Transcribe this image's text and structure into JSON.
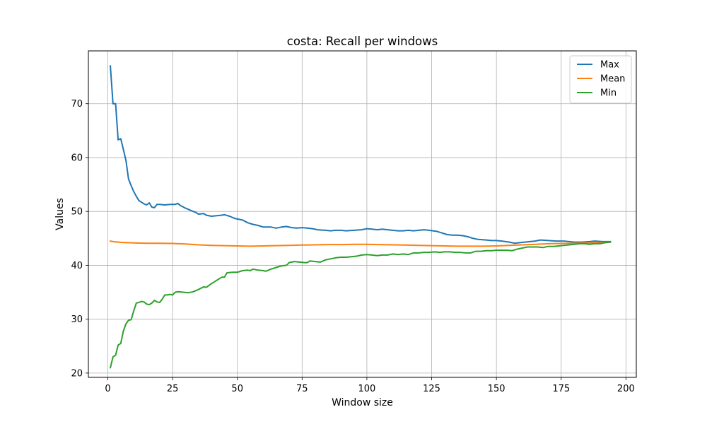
{
  "chart_data": {
    "type": "line",
    "title": "costa: Recall per windows",
    "xlabel": "Window size",
    "ylabel": "Values",
    "xlim": [
      -7.5,
      204
    ],
    "ylim": [
      19.2,
      79.8
    ],
    "xticks": [
      0,
      25,
      50,
      75,
      100,
      125,
      150,
      175,
      200
    ],
    "yticks": [
      20,
      30,
      40,
      50,
      60,
      70
    ],
    "grid": true,
    "legend_position": "top-right",
    "series": [
      {
        "name": "Max",
        "color": "#1f77b4",
        "points": [
          [
            1,
            77
          ],
          [
            2,
            70
          ],
          [
            3,
            70
          ],
          [
            4,
            63.3
          ],
          [
            5,
            63.5
          ],
          [
            6,
            61.5
          ],
          [
            7,
            59.5
          ],
          [
            8,
            56
          ],
          [
            9,
            54.8
          ],
          [
            10,
            53.7
          ],
          [
            11,
            52.8
          ],
          [
            12,
            52
          ],
          [
            13,
            51.7
          ],
          [
            14,
            51.4
          ],
          [
            15,
            51.2
          ],
          [
            16,
            51.6
          ],
          [
            17,
            50.8
          ],
          [
            18,
            50.7
          ],
          [
            19,
            51.3
          ],
          [
            20,
            51.3
          ],
          [
            22,
            51.2
          ],
          [
            24,
            51.3
          ],
          [
            26,
            51.3
          ],
          [
            27,
            51.5
          ],
          [
            28,
            51.1
          ],
          [
            30,
            50.6
          ],
          [
            32,
            50.2
          ],
          [
            34,
            49.8
          ],
          [
            35,
            49.5
          ],
          [
            37,
            49.6
          ],
          [
            38,
            49.3
          ],
          [
            40,
            49.1
          ],
          [
            42,
            49.2
          ],
          [
            44,
            49.3
          ],
          [
            45,
            49.4
          ],
          [
            47,
            49.1
          ],
          [
            49,
            48.7
          ],
          [
            52,
            48.4
          ],
          [
            54,
            47.9
          ],
          [
            56,
            47.6
          ],
          [
            58,
            47.4
          ],
          [
            60,
            47.1
          ],
          [
            63,
            47.1
          ],
          [
            65,
            46.9
          ],
          [
            67,
            47.1
          ],
          [
            69,
            47.2
          ],
          [
            71,
            47
          ],
          [
            73,
            46.9
          ],
          [
            75,
            47
          ],
          [
            77,
            46.9
          ],
          [
            79,
            46.8
          ],
          [
            81,
            46.6
          ],
          [
            84,
            46.5
          ],
          [
            86,
            46.4
          ],
          [
            88,
            46.5
          ],
          [
            90,
            46.5
          ],
          [
            92,
            46.4
          ],
          [
            95,
            46.5
          ],
          [
            98,
            46.6
          ],
          [
            100,
            46.8
          ],
          [
            102,
            46.7
          ],
          [
            104,
            46.6
          ],
          [
            106,
            46.7
          ],
          [
            108,
            46.6
          ],
          [
            110,
            46.5
          ],
          [
            112,
            46.4
          ],
          [
            114,
            46.4
          ],
          [
            116,
            46.5
          ],
          [
            118,
            46.4
          ],
          [
            120,
            46.5
          ],
          [
            122,
            46.6
          ],
          [
            124,
            46.5
          ],
          [
            127,
            46.3
          ],
          [
            129,
            46
          ],
          [
            131,
            45.7
          ],
          [
            133,
            45.6
          ],
          [
            135,
            45.6
          ],
          [
            137,
            45.5
          ],
          [
            139,
            45.3
          ],
          [
            141,
            45
          ],
          [
            143,
            44.8
          ],
          [
            146,
            44.7
          ],
          [
            148,
            44.6
          ],
          [
            150,
            44.6
          ],
          [
            152,
            44.5
          ],
          [
            155,
            44.3
          ],
          [
            157,
            44.1
          ],
          [
            159,
            44.2
          ],
          [
            161,
            44.3
          ],
          [
            163,
            44.4
          ],
          [
            165,
            44.5
          ],
          [
            167,
            44.7
          ],
          [
            170,
            44.6
          ],
          [
            173,
            44.5
          ],
          [
            176,
            44.5
          ],
          [
            178,
            44.4
          ],
          [
            180,
            44.3
          ],
          [
            183,
            44.3
          ],
          [
            186,
            44.4
          ],
          [
            188,
            44.5
          ],
          [
            191,
            44.4
          ],
          [
            194,
            44.4
          ]
        ]
      },
      {
        "name": "Mean",
        "color": "#ff7f0e",
        "points": [
          [
            1,
            44.5
          ],
          [
            2,
            44.4
          ],
          [
            5,
            44.25
          ],
          [
            10,
            44.15
          ],
          [
            15,
            44.1
          ],
          [
            20,
            44.1
          ],
          [
            25,
            44.05
          ],
          [
            30,
            43.95
          ],
          [
            35,
            43.8
          ],
          [
            40,
            43.7
          ],
          [
            45,
            43.65
          ],
          [
            50,
            43.6
          ],
          [
            55,
            43.55
          ],
          [
            60,
            43.6
          ],
          [
            65,
            43.65
          ],
          [
            70,
            43.7
          ],
          [
            75,
            43.75
          ],
          [
            80,
            43.8
          ],
          [
            85,
            43.85
          ],
          [
            90,
            43.85
          ],
          [
            95,
            43.9
          ],
          [
            100,
            43.9
          ],
          [
            105,
            43.85
          ],
          [
            110,
            43.8
          ],
          [
            115,
            43.75
          ],
          [
            120,
            43.7
          ],
          [
            125,
            43.65
          ],
          [
            130,
            43.6
          ],
          [
            135,
            43.55
          ],
          [
            140,
            43.55
          ],
          [
            145,
            43.55
          ],
          [
            150,
            43.6
          ],
          [
            155,
            43.7
          ],
          [
            160,
            43.8
          ],
          [
            165,
            43.9
          ],
          [
            170,
            44
          ],
          [
            175,
            44.05
          ],
          [
            180,
            44.1
          ],
          [
            185,
            44.15
          ],
          [
            190,
            44.2
          ],
          [
            194,
            44.3
          ]
        ]
      },
      {
        "name": "Min",
        "color": "#2ca02c",
        "points": [
          [
            1,
            21
          ],
          [
            2,
            23
          ],
          [
            3,
            23.3
          ],
          [
            4,
            25.2
          ],
          [
            5,
            25.5
          ],
          [
            6,
            27.8
          ],
          [
            7,
            29.1
          ],
          [
            8,
            29.8
          ],
          [
            9,
            29.9
          ],
          [
            10,
            31.5
          ],
          [
            11,
            33
          ],
          [
            12,
            33.1
          ],
          [
            13,
            33.3
          ],
          [
            14,
            33.2
          ],
          [
            15,
            32.8
          ],
          [
            16,
            32.7
          ],
          [
            17,
            33
          ],
          [
            18,
            33.5
          ],
          [
            19,
            33.2
          ],
          [
            20,
            33.1
          ],
          [
            21,
            33.7
          ],
          [
            22,
            34.5
          ],
          [
            23,
            34.5
          ],
          [
            24,
            34.6
          ],
          [
            25,
            34.5
          ],
          [
            26,
            35
          ],
          [
            27,
            35.1
          ],
          [
            29,
            35
          ],
          [
            31,
            34.9
          ],
          [
            33,
            35.1
          ],
          [
            35,
            35.5
          ],
          [
            37,
            36
          ],
          [
            38,
            35.9
          ],
          [
            40,
            36.6
          ],
          [
            42,
            37.2
          ],
          [
            44,
            37.8
          ],
          [
            45,
            37.8
          ],
          [
            46,
            38.6
          ],
          [
            48,
            38.7
          ],
          [
            50,
            38.7
          ],
          [
            52,
            39
          ],
          [
            54,
            39.1
          ],
          [
            55,
            39
          ],
          [
            56,
            39.3
          ],
          [
            58,
            39.1
          ],
          [
            60,
            39
          ],
          [
            61,
            38.9
          ],
          [
            63,
            39.3
          ],
          [
            65,
            39.6
          ],
          [
            67,
            39.9
          ],
          [
            69,
            40
          ],
          [
            70,
            40.5
          ],
          [
            72,
            40.7
          ],
          [
            74,
            40.6
          ],
          [
            76,
            40.5
          ],
          [
            77,
            40.5
          ],
          [
            78,
            40.8
          ],
          [
            80,
            40.7
          ],
          [
            82,
            40.6
          ],
          [
            84,
            41
          ],
          [
            86,
            41.2
          ],
          [
            88,
            41.4
          ],
          [
            90,
            41.5
          ],
          [
            92,
            41.5
          ],
          [
            94,
            41.6
          ],
          [
            96,
            41.7
          ],
          [
            98,
            41.9
          ],
          [
            100,
            42
          ],
          [
            102,
            41.9
          ],
          [
            104,
            41.8
          ],
          [
            106,
            41.9
          ],
          [
            108,
            41.9
          ],
          [
            110,
            42.1
          ],
          [
            112,
            42
          ],
          [
            114,
            42.1
          ],
          [
            116,
            42
          ],
          [
            118,
            42.3
          ],
          [
            120,
            42.3
          ],
          [
            122,
            42.4
          ],
          [
            124,
            42.4
          ],
          [
            126,
            42.5
          ],
          [
            128,
            42.4
          ],
          [
            130,
            42.5
          ],
          [
            132,
            42.5
          ],
          [
            134,
            42.4
          ],
          [
            136,
            42.4
          ],
          [
            138,
            42.3
          ],
          [
            140,
            42.3
          ],
          [
            142,
            42.6
          ],
          [
            144,
            42.6
          ],
          [
            146,
            42.7
          ],
          [
            148,
            42.7
          ],
          [
            150,
            42.8
          ],
          [
            152,
            42.8
          ],
          [
            154,
            42.8
          ],
          [
            156,
            42.7
          ],
          [
            158,
            43.0
          ],
          [
            160,
            43.2
          ],
          [
            162,
            43.4
          ],
          [
            164,
            43.4
          ],
          [
            166,
            43.4
          ],
          [
            168,
            43.3
          ],
          [
            170,
            43.5
          ],
          [
            172,
            43.5
          ],
          [
            174,
            43.6
          ],
          [
            176,
            43.7
          ],
          [
            178,
            43.8
          ],
          [
            180,
            43.9
          ],
          [
            182,
            44
          ],
          [
            184,
            44
          ],
          [
            186,
            43.9
          ],
          [
            188,
            44
          ],
          [
            190,
            44
          ],
          [
            192,
            44.2
          ],
          [
            194,
            44.3
          ]
        ]
      }
    ]
  }
}
